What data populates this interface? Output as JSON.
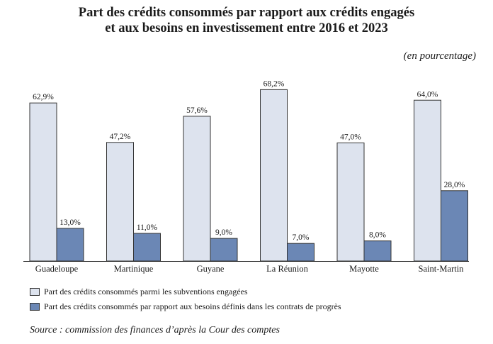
{
  "title_line1": "Part des crédits consommés par rapport aux crédits engagés",
  "title_line2": "et aux besoins en investissement entre 2016 et 2023",
  "unit": "(en pourcentage)",
  "source": "Source : commission des finances d’après la Cour des comptes",
  "colors": {
    "series1": "#dde3ee",
    "series2": "#6b87b5",
    "stroke": "#333333"
  },
  "chart_data": {
    "type": "bar",
    "title": "Part des crédits consommés par rapport aux crédits engagés et aux besoins en investissement entre 2016 et 2023",
    "ylabel": "",
    "xlabel": "",
    "ylim": [
      0,
      70
    ],
    "grid": false,
    "legend_position": "bottom",
    "categories": [
      "Guadeloupe",
      "Martinique",
      "Guyane",
      "La Réunion",
      "Mayotte",
      "Saint-Martin"
    ],
    "series": [
      {
        "name": "Part des crédits consommés parmi les subventions engagées",
        "values": [
          62.9,
          47.2,
          57.6,
          68.2,
          47.0,
          64.0
        ],
        "labels": [
          "62,9%",
          "47,2%",
          "57,6%",
          "68,2%",
          "47,0%",
          "64,0%"
        ]
      },
      {
        "name": "Part des crédits consommés par rapport aux besoins définis dans les contrats de progrès",
        "values": [
          13.0,
          11.0,
          9.0,
          7.0,
          8.0,
          28.0
        ],
        "labels": [
          "13,0%",
          "11,0%",
          "9,0%",
          "7,0%",
          "8,0%",
          "28,0%"
        ]
      }
    ]
  }
}
